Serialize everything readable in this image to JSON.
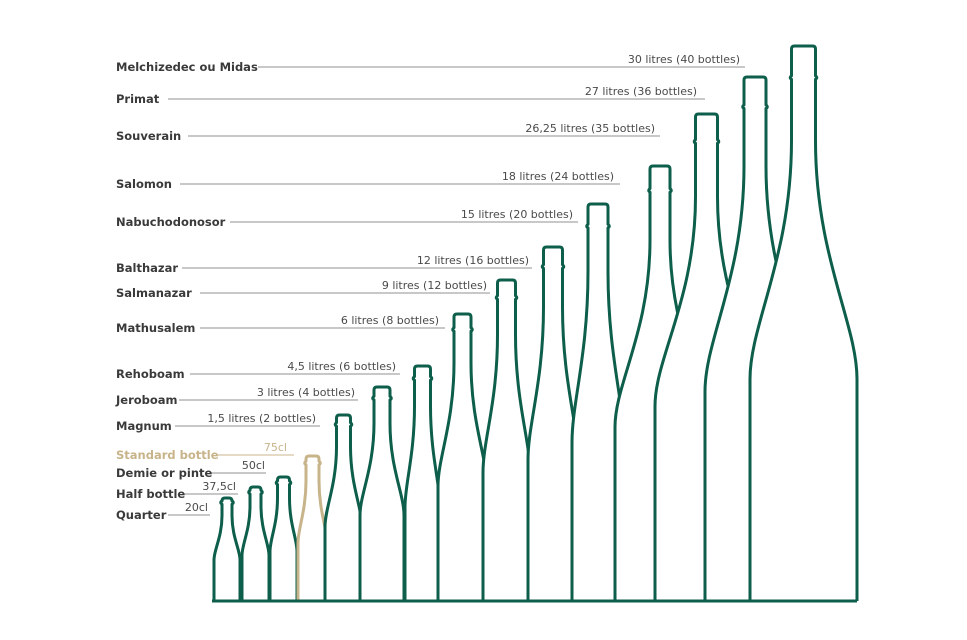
{
  "colors": {
    "bottle": "#0d5e4a",
    "highlight": "#c8b48a",
    "leader": "#a7a7a7",
    "label": "#3a3a3a"
  },
  "bottles": [
    {
      "id": "quarter",
      "name": "Quarter",
      "size": "20cl",
      "highlight": false
    },
    {
      "id": "half-bottle",
      "name": "Half bottle",
      "size": "37,5cl",
      "highlight": false
    },
    {
      "id": "demie-pinte",
      "name": "Demie or pinte",
      "size": "50cl",
      "highlight": false
    },
    {
      "id": "standard",
      "name": "Standard bottle",
      "size": "75cl",
      "highlight": true
    },
    {
      "id": "magnum",
      "name": "Magnum",
      "size": "1,5 litres (2 bottles)",
      "highlight": false
    },
    {
      "id": "jeroboam",
      "name": "Jeroboam",
      "size": "3 litres (4 bottles)",
      "highlight": false
    },
    {
      "id": "rehoboam",
      "name": "Rehoboam",
      "size": "4,5 litres (6 bottles)",
      "highlight": false
    },
    {
      "id": "mathusalem",
      "name": "Mathusalem",
      "size": "6 litres (8 bottles)",
      "highlight": false
    },
    {
      "id": "salmanazar",
      "name": "Salmanazar",
      "size": "9 litres (12 bottles)",
      "highlight": false
    },
    {
      "id": "balthazar",
      "name": "Balthazar",
      "size": "12 litres (16 bottles)",
      "highlight": false
    },
    {
      "id": "nabuchodonosor",
      "name": "Nabuchodonosor",
      "size": "15 litres (20 bottles)",
      "highlight": false
    },
    {
      "id": "salomon",
      "name": "Salomon",
      "size": "18 litres (24 bottles)",
      "highlight": false
    },
    {
      "id": "souverain",
      "name": "Souverain",
      "size": "26,25 litres (35 bottles)",
      "highlight": false
    },
    {
      "id": "primat",
      "name": "Primat",
      "size": "27 litres (36 bottles)",
      "highlight": false
    },
    {
      "id": "melchizedec",
      "name": "Melchizedec ou Midas",
      "size": "30 litres (40 bottles)",
      "highlight": false
    }
  ]
}
